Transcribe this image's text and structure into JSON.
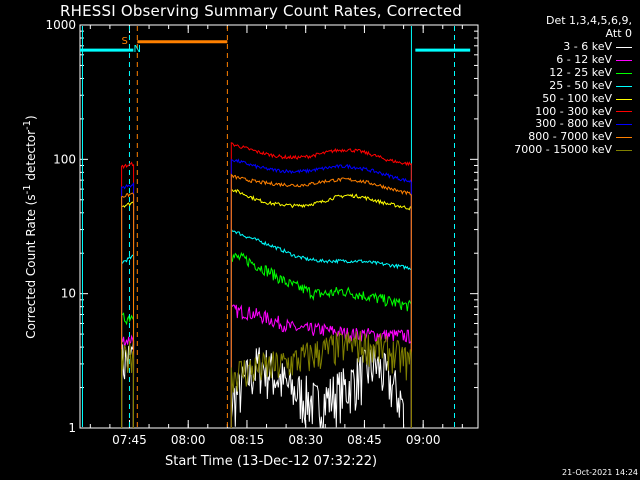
{
  "chart_data": {
    "type": "line",
    "title": "RHESSI Observing Summary Count Rates, Corrected",
    "xlabel": "Start Time (13-Dec-12 07:32:22)",
    "ylabel_parts": [
      "Corrected Count Rate (s",
      "-1",
      " detector",
      "-1",
      ")"
    ],
    "y_scale": "log",
    "ylim": [
      1,
      1000
    ],
    "xlim": [
      "07:32:22",
      "09:14:00"
    ],
    "y_ticks": [
      "1",
      "10",
      "100",
      "1000"
    ],
    "x_ticks": [
      "07:45",
      "08:00",
      "08:15",
      "08:30",
      "08:45",
      "09:00"
    ],
    "legend_header": [
      "Det 1,3,4,5,6,9,",
      "Att 0"
    ],
    "series": [
      {
        "name": "3 - 6 keV",
        "color": "#ffffff",
        "segments": [
          {
            "start": "07:43",
            "end": "07:46",
            "v": [
              3.0,
              3.5
            ]
          },
          {
            "start": "08:11",
            "end": "08:55",
            "v": [
              1.5,
              3.0,
              2.0,
              1.5,
              2.0,
              3.0,
              1.5
            ]
          }
        ]
      },
      {
        "name": "6 - 12 keV",
        "color": "#ff00ff",
        "segments": [
          {
            "start": "07:43",
            "end": "07:46",
            "v": [
              4.5,
              4.5,
              4.7
            ]
          },
          {
            "start": "08:11",
            "end": "08:57",
            "v": [
              7.5,
              7.3,
              6.8,
              6.2,
              5.6,
              5.4,
              5.4,
              5.2,
              5.0,
              5.0,
              4.9,
              4.9,
              4.8
            ]
          }
        ]
      },
      {
        "name": "12 - 25 keV",
        "color": "#00ff00",
        "segments": [
          {
            "start": "07:43",
            "end": "07:46",
            "v": [
              6.5,
              6.6,
              7.0
            ]
          },
          {
            "start": "08:11",
            "end": "08:57",
            "v": [
              19,
              18,
              16,
              14,
              12,
              11,
              10,
              10,
              10.5,
              10,
              9.5,
              9,
              8.5,
              8
            ]
          }
        ]
      },
      {
        "name": "25 - 50 keV",
        "color": "#00ffff",
        "segments": [
          {
            "start": "07:43",
            "end": "07:46",
            "v": [
              17,
              18,
              19
            ]
          },
          {
            "start": "08:11",
            "end": "08:57",
            "v": [
              30,
              27,
              25,
              23,
              21,
              19,
              18,
              17.5,
              17.5,
              17.5,
              17.5,
              17,
              16.5,
              16,
              15.5
            ]
          }
        ]
      },
      {
        "name": "50 - 100 keV",
        "color": "#ffff00",
        "segments": [
          {
            "start": "07:43",
            "end": "07:46",
            "v": [
              45,
              46,
              48
            ]
          },
          {
            "start": "08:11",
            "end": "08:57",
            "v": [
              60,
              55,
              50,
              47,
              46,
              45,
              46,
              48,
              52,
              54,
              53,
              50,
              47,
              45,
              43
            ]
          }
        ]
      },
      {
        "name": "100 - 300 keV",
        "color": "#ff0000",
        "segments": [
          {
            "start": "07:43",
            "end": "07:46",
            "v": [
              88,
              90,
              93
            ]
          },
          {
            "start": "08:11",
            "end": "08:57",
            "v": [
              130,
              122,
              114,
              108,
              104,
              103,
              105,
              110,
              116,
              118,
              115,
              108,
              100,
              95,
              92
            ]
          }
        ]
      },
      {
        "name": "300 - 800 keV",
        "color": "#0000ff",
        "segments": [
          {
            "start": "07:43",
            "end": "07:46",
            "v": [
              62,
              63,
              65
            ]
          },
          {
            "start": "08:11",
            "end": "08:57",
            "v": [
              100,
              94,
              88,
              84,
              82,
              81,
              82,
              85,
              88,
              89,
              86,
              82,
              77,
              72,
              68
            ]
          }
        ]
      },
      {
        "name": "800 - 7000 keV",
        "color": "#ff8000",
        "segments": [
          {
            "start": "07:43",
            "end": "07:46",
            "v": [
              53,
              54,
              56
            ]
          },
          {
            "start": "08:11",
            "end": "08:57",
            "v": [
              75,
              71,
              68,
              66,
              65,
              64,
              65,
              68,
              70,
              71,
              69,
              66,
              62,
              58,
              55
            ]
          }
        ]
      },
      {
        "name": "7000 - 15000 keV",
        "color": "#808000",
        "segments": [
          {
            "start": "07:43",
            "end": "07:46",
            "v": [
              3.0,
              3.4,
              3.8
            ]
          },
          {
            "start": "08:11",
            "end": "08:57",
            "v": [
              2.5,
              2.7,
              2.8,
              2.9,
              3.1,
              3.4,
              3.7,
              4.0,
              4.2,
              4.1,
              3.9,
              3.5,
              3.0
            ]
          }
        ]
      }
    ],
    "saa_label": "S",
    "night_label": "N",
    "night_bands": [
      {
        "y": 650,
        "color": "#00ffff",
        "start": "07:32:22",
        "end": "07:46"
      },
      {
        "y": 750,
        "color": "#ff8000",
        "start": "07:47",
        "end": "08:10"
      },
      {
        "y": 650,
        "color": "#00ffff",
        "start": "08:58",
        "end": "09:12"
      }
    ],
    "vlines": [
      {
        "t": "07:33",
        "color": "#00ffff",
        "style": "solid"
      },
      {
        "t": "07:45",
        "color": "#00ffff",
        "style": "dashed"
      },
      {
        "t": "07:47",
        "color": "#ff8000",
        "style": "dashed"
      },
      {
        "t": "08:10",
        "color": "#ff8000",
        "style": "dashed"
      },
      {
        "t": "08:57",
        "color": "#00ffff",
        "style": "solid"
      },
      {
        "t": "09:08",
        "color": "#00ffff",
        "style": "dashed"
      }
    ]
  },
  "footer": {
    "timestamp": "21-Oct-2021 14:24"
  }
}
